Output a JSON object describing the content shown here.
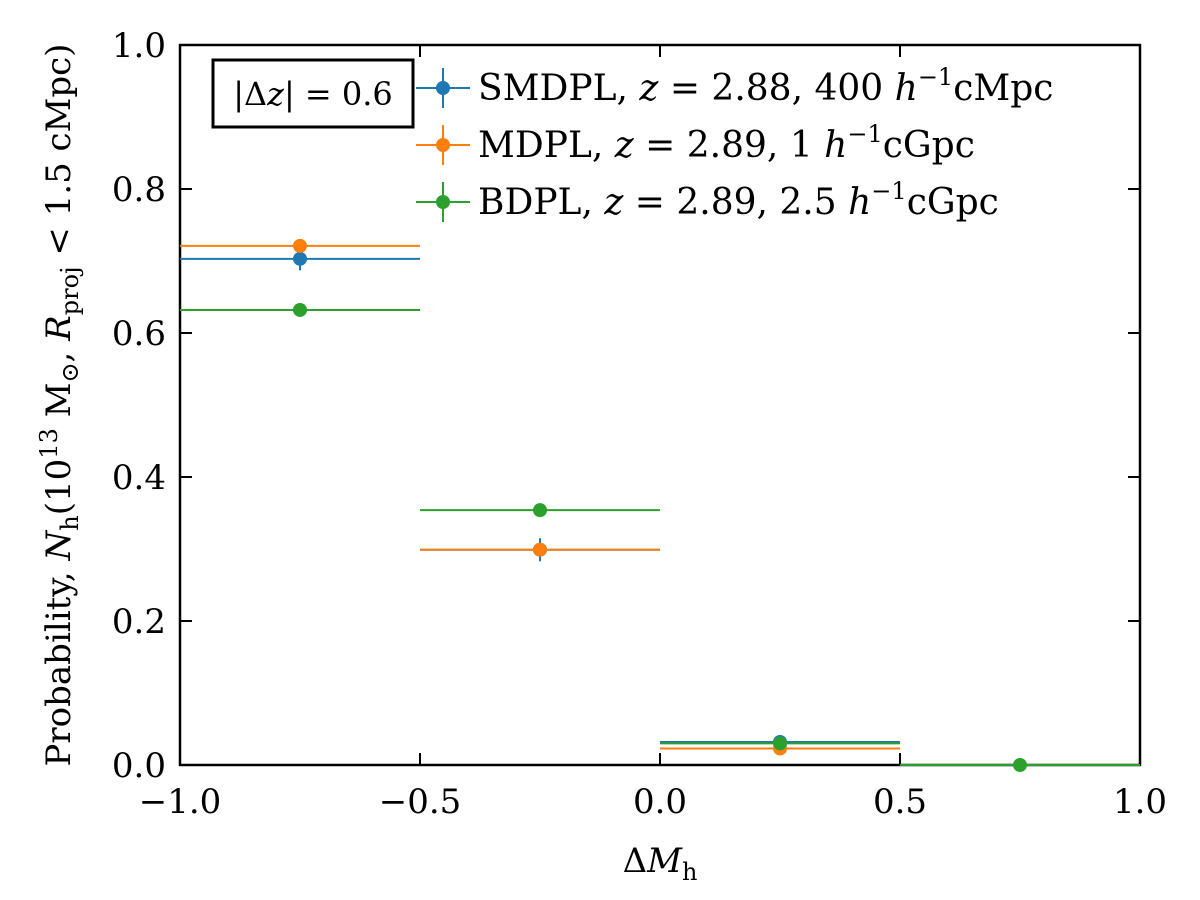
{
  "chart_data": {
    "type": "scatter",
    "xlabel": "ΔMh",
    "ylabel": "Probability, Nh(10^13 M⊙, Rproj < 1.5 cMpc)",
    "xlim": [
      -1.0,
      1.0
    ],
    "ylim": [
      0.0,
      1.0
    ],
    "x_ticks": [
      -1.0,
      -0.5,
      0.0,
      0.5,
      1.0
    ],
    "x_tick_labels": [
      "−1.0",
      "−0.5",
      "0.0",
      "0.5",
      "1.0"
    ],
    "y_ticks": [
      0.0,
      0.2,
      0.4,
      0.6,
      0.8,
      1.0
    ],
    "y_tick_labels": [
      "0.0",
      "0.2",
      "0.4",
      "0.6",
      "0.8",
      "1.0"
    ],
    "annotation": "|Δz| = 0.6",
    "legend_position": "top-right",
    "series": [
      {
        "name": "SMDPL, z = 2.88, 400 h⁻¹cMpc",
        "color": "#1f77b4",
        "x": [
          -0.75,
          -0.25,
          0.25
        ],
        "y": [
          0.703,
          0.299,
          0.032
        ],
        "xerr": 0.25,
        "yerr": [
          0.016,
          0.016,
          0.004
        ]
      },
      {
        "name": "MDPL, z = 2.89, 1 h⁻¹cGpc",
        "color": "#ff7f0e",
        "x": [
          -0.75,
          -0.25,
          0.25
        ],
        "y": [
          0.721,
          0.299,
          0.023
        ],
        "xerr": 0.25,
        "yerr": [
          0.004,
          0.004,
          0.002
        ]
      },
      {
        "name": "BDPL, z = 2.89, 2.5 h⁻¹cGpc",
        "color": "#2ca02c",
        "x": [
          -0.75,
          -0.25,
          0.25,
          0.75
        ],
        "y": [
          0.632,
          0.354,
          0.03,
          0.0
        ],
        "xerr": 0.25,
        "yerr": [
          0.002,
          0.002,
          0.001,
          0.0
        ]
      }
    ],
    "legend_parts": [
      {
        "name": "SMDPL, ",
        "z": "2.88",
        "size": "400",
        "unit": "cMpc"
      },
      {
        "name": "MDPL, ",
        "z": "2.89",
        "size": "1",
        "unit": "cGpc"
      },
      {
        "name": "BDPL, ",
        "z": "2.89",
        "size": "2.5",
        "unit": "cGpc"
      }
    ]
  }
}
